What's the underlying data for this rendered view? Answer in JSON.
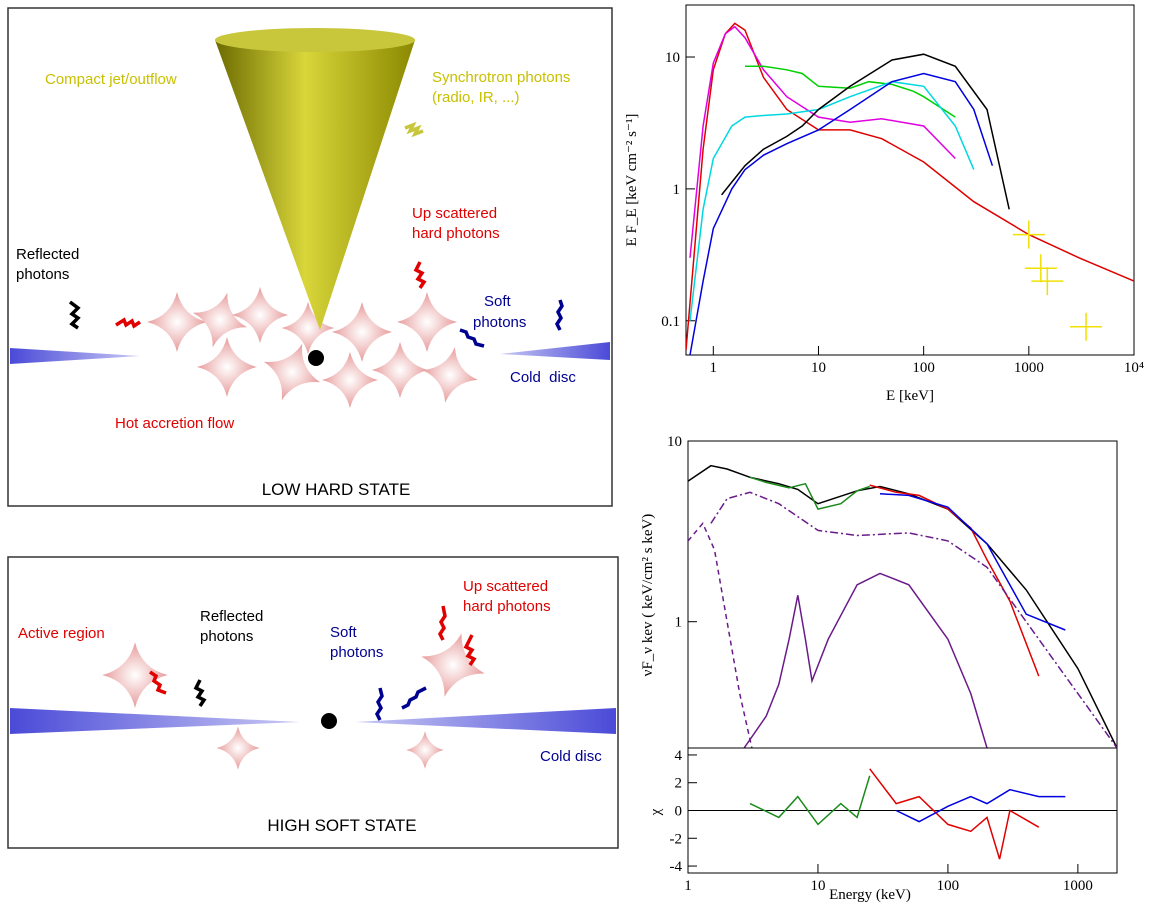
{
  "diagrams": [
    {
      "title": "LOW HARD STATE",
      "labels": [
        "Compact jet/outflow",
        "Synchrotron photons",
        "(radio, IR, ...)",
        "Up scattered",
        "hard photons",
        "Reflected",
        "photons",
        "Soft",
        "photons",
        "Cold  disc",
        "Hot accretion flow"
      ]
    },
    {
      "title": "HIGH SOFT STATE",
      "labels": [
        "Active region",
        "Reflected",
        "photons",
        "Up scattered",
        "hard photons",
        "Soft",
        "photons",
        "Cold disc"
      ]
    }
  ],
  "chart_data": [
    {
      "type": "line",
      "xlabel": "E [keV]",
      "ylabel": "E F_E [keV cm⁻² s⁻¹]",
      "log_x": true,
      "log_y": true,
      "xlim": [
        0.55,
        10000
      ],
      "ylim": [
        0.055,
        24.8
      ],
      "xticks": [
        1,
        10,
        100,
        1000,
        {
          "value": 10000,
          "label": "10⁴"
        }
      ],
      "yticks": [
        0.1,
        1,
        10
      ],
      "series": [
        {
          "color": "#e00000",
          "x": [
            0.55,
            0.8,
            1,
            1.3,
            1.6,
            2,
            3,
            5,
            10,
            20,
            40,
            100,
            300,
            1000,
            3000,
            10000
          ],
          "values": [
            0.06,
            2,
            8,
            15,
            18,
            16,
            7,
            4,
            2.8,
            2.8,
            2.4,
            1.6,
            0.8,
            0.45,
            0.3,
            0.2
          ]
        },
        {
          "color": "#e000e0",
          "x": [
            0.6,
            0.8,
            1,
            1.3,
            1.6,
            2,
            3,
            5,
            10,
            20,
            40,
            100,
            200
          ],
          "values": [
            0.3,
            3,
            9,
            15,
            17,
            14,
            8,
            5,
            3.5,
            3.2,
            3.4,
            3,
            1.7
          ]
        },
        {
          "color": "#00d000",
          "x": [
            2,
            3,
            5,
            7,
            10,
            20,
            30,
            50,
            80,
            100,
            200
          ],
          "values": [
            8.5,
            8.5,
            8,
            7.5,
            6,
            5.8,
            6.5,
            6.2,
            5.5,
            5,
            3.5
          ]
        },
        {
          "color": "#00d8e0",
          "x": [
            0.6,
            0.8,
            1,
            1.5,
            2,
            3,
            5,
            10,
            20,
            50,
            100,
            200,
            300
          ],
          "values": [
            0.1,
            0.7,
            1.7,
            3,
            3.5,
            3.6,
            3.7,
            4,
            5,
            6.5,
            6,
            3,
            1.4
          ]
        },
        {
          "color": "#0000e0",
          "x": [
            0.6,
            0.8,
            1,
            1.5,
            2,
            3,
            5,
            10,
            20,
            50,
            100,
            200,
            300,
            450
          ],
          "values": [
            0.055,
            0.2,
            0.5,
            1,
            1.4,
            1.8,
            2.2,
            2.8,
            4,
            6.5,
            7.5,
            6.5,
            4,
            1.5
          ]
        },
        {
          "color": "#000000",
          "x": [
            1.2,
            2,
            3,
            5,
            7,
            10,
            20,
            50,
            100,
            200,
            400,
            650
          ],
          "values": [
            0.9,
            1.5,
            2,
            2.5,
            3,
            4,
            6,
            9.5,
            10.5,
            8.5,
            4,
            0.7
          ]
        },
        {
          "color": "#f0e000",
          "marker": "cross",
          "x": [
            1000,
            1300,
            1500,
            3500
          ],
          "values": [
            0.45,
            0.25,
            0.2,
            0.09
          ]
        }
      ]
    },
    {
      "type": "line",
      "ylabel": "νF_ν  kev ( keV/cm² s keV)",
      "log_x": true,
      "log_y": true,
      "xlim": [
        1,
        2000
      ],
      "ylim": [
        0.2,
        10
      ],
      "yticks": [
        1,
        10
      ],
      "series": [
        {
          "color": "#000000",
          "x": [
            1,
            1.5,
            2,
            3,
            5,
            7,
            10,
            20,
            30,
            50,
            100,
            200,
            400,
            1000,
            2000
          ],
          "values": [
            6,
            7.3,
            7,
            6.3,
            5.8,
            5.4,
            4.5,
            5.3,
            5.6,
            5.1,
            4.2,
            2.7,
            1.5,
            0.55,
            0.2
          ]
        },
        {
          "color": "#1a8a1a",
          "x": [
            3,
            4,
            6,
            8,
            10,
            15,
            20,
            25
          ],
          "values": [
            6.3,
            5.9,
            5.5,
            5.8,
            4.2,
            4.5,
            5.3,
            5.6
          ]
        },
        {
          "color": "#e00000",
          "x": [
            25,
            40,
            60,
            100,
            150,
            200,
            300,
            500
          ],
          "values": [
            5.7,
            5.2,
            5,
            4.2,
            3.3,
            2.2,
            1.3,
            0.5
          ]
        },
        {
          "color": "#0000e0",
          "x": [
            30,
            50,
            100,
            200,
            400,
            800
          ],
          "values": [
            5.1,
            5,
            4.3,
            2.7,
            1.1,
            0.9
          ]
        },
        {
          "color": "#6a1b8a",
          "linestyle": "dashdot",
          "x": [
            1.5,
            2,
            3,
            5,
            10,
            20,
            50,
            100,
            200,
            500,
            1000,
            2000
          ],
          "values": [
            3.5,
            4.8,
            5.2,
            4.5,
            3.2,
            3,
            3.1,
            2.8,
            2,
            0.8,
            0.4,
            0.2
          ]
        },
        {
          "color": "#6a1b8a",
          "linestyle": "dashed",
          "x": [
            1,
            1.3,
            1.6,
            2,
            2.5,
            3.1
          ],
          "values": [
            2.8,
            3.5,
            2.5,
            1,
            0.4,
            0.2
          ]
        },
        {
          "color": "#6a1b8a",
          "x": [
            2.7,
            4,
            5,
            6,
            7,
            8,
            9,
            12,
            20,
            30,
            50,
            100,
            150,
            200
          ],
          "values": [
            0.2,
            0.3,
            0.45,
            0.8,
            1.4,
            0.8,
            0.47,
            0.8,
            1.6,
            1.85,
            1.6,
            0.8,
            0.4,
            0.2
          ]
        }
      ]
    },
    {
      "type": "line",
      "xlabel": "Energy (keV)",
      "ylabel": "χ",
      "log_x": true,
      "log_y": false,
      "xlim": [
        1,
        2000
      ],
      "ylim": [
        -4.5,
        4.5
      ],
      "xticks": [
        1,
        10,
        100,
        1000
      ],
      "yticks": [
        -4,
        -2,
        0,
        2,
        4
      ],
      "series": [
        {
          "color": "#1a8a1a",
          "x": [
            3,
            5,
            7,
            10,
            15,
            20,
            25
          ],
          "values": [
            0.5,
            -0.5,
            1,
            -1,
            0.5,
            -0.5,
            2.5
          ]
        },
        {
          "color": "#e00000",
          "x": [
            25,
            40,
            60,
            100,
            150,
            200,
            250,
            300,
            500
          ],
          "values": [
            3,
            0.5,
            1,
            -1,
            -1.5,
            -0.5,
            -3.5,
            0,
            -1.2
          ]
        },
        {
          "color": "#0000e0",
          "x": [
            40,
            60,
            100,
            150,
            200,
            300,
            500,
            800
          ],
          "values": [
            0,
            -0.8,
            0.3,
            1,
            0.5,
            1.5,
            1,
            1
          ]
        }
      ]
    }
  ]
}
